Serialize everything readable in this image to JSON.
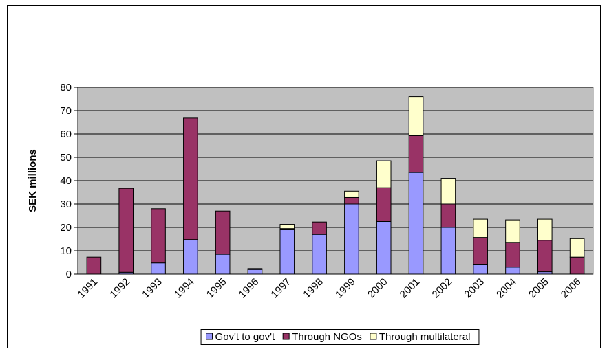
{
  "chart_data": {
    "type": "stacked_bar",
    "y_label": "SEK millions",
    "categories": [
      "1991",
      "1992",
      "1993",
      "1994",
      "1995",
      "1996",
      "1997",
      "1998",
      "1999",
      "2000",
      "2001",
      "2002",
      "2003",
      "2004",
      "2005",
      "2006"
    ],
    "series": [
      {
        "name": "Gov't to gov't",
        "color": "#9999ff",
        "values": [
          0,
          0.8,
          4.8,
          14.8,
          8.5,
          2,
          19,
          17,
          30,
          22.5,
          43.5,
          20,
          4,
          3,
          1,
          0
        ]
      },
      {
        "name": "Through NGOs",
        "color": "#993366",
        "values": [
          7.3,
          35.9,
          23.2,
          52,
          18.5,
          0.4,
          0.5,
          5.3,
          2.8,
          14.5,
          15.8,
          10,
          11.7,
          10.6,
          13.5,
          7.3
        ]
      },
      {
        "name": "Through multilateral",
        "color": "#ffffcc",
        "values": [
          0,
          0,
          0,
          0,
          0,
          0,
          1.8,
          0,
          2.7,
          11.5,
          16.7,
          11,
          7.8,
          9.6,
          9,
          7.9
        ]
      }
    ],
    "ylim": [
      0,
      80
    ],
    "yticks": [
      0,
      10,
      20,
      30,
      40,
      50,
      60,
      70,
      80
    ],
    "grid": true,
    "plot_background": "#c0c0c0",
    "legend": "bottom"
  }
}
